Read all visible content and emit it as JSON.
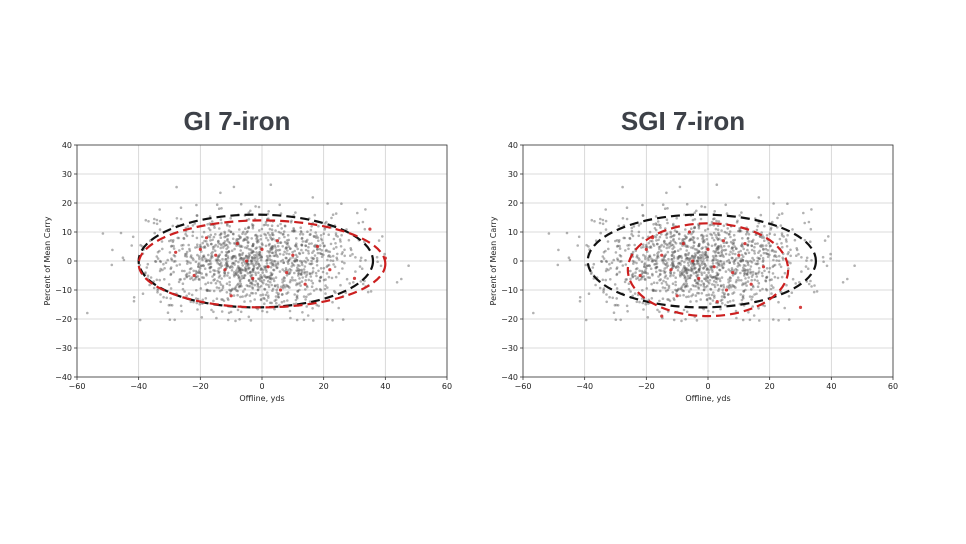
{
  "chart_data": [
    {
      "type": "scatter",
      "title": "GI 7-iron",
      "xlabel": "Offline, yds",
      "ylabel": "Percent of Mean Carry",
      "xlim": [
        -60,
        60
      ],
      "ylim": [
        -40,
        40
      ],
      "xticks": [
        -60,
        -40,
        -20,
        0,
        20,
        40,
        60
      ],
      "yticks": [
        -40,
        -30,
        -20,
        -10,
        0,
        10,
        20,
        30,
        40
      ],
      "xtick_labels": [
        "−60",
        "−40",
        "−20",
        "0",
        "20",
        "40",
        "60"
      ],
      "ytick_labels": [
        "−40",
        "−30",
        "−20",
        "−10",
        "0",
        "10",
        "20",
        "30",
        "40"
      ],
      "grid": true,
      "colors": {
        "points": "#555555",
        "highlight": "#cc1f1f",
        "ellipse_black": "#111111",
        "ellipse_red": "#cc1f1f"
      },
      "ellipses": [
        {
          "name": "black",
          "center": [
            -2,
            0
          ],
          "radius_x": 38,
          "radius_y": 16
        },
        {
          "name": "red",
          "center": [
            0,
            -1
          ],
          "radius_x": 40,
          "radius_y": 15
        }
      ],
      "highlight_points": [
        [
          -20,
          4
        ],
        [
          -15,
          2
        ],
        [
          -12,
          -3
        ],
        [
          -8,
          6
        ],
        [
          -5,
          0
        ],
        [
          -3,
          -6
        ],
        [
          0,
          4
        ],
        [
          2,
          -2
        ],
        [
          5,
          7
        ],
        [
          8,
          -4
        ],
        [
          10,
          2
        ],
        [
          14,
          -8
        ],
        [
          -22,
          -5
        ],
        [
          -28,
          3
        ],
        [
          18,
          5
        ],
        [
          22,
          -3
        ],
        [
          35,
          11
        ],
        [
          40,
          1
        ],
        [
          -10,
          -12
        ],
        [
          6,
          -10
        ],
        [
          -18,
          8
        ],
        [
          30,
          -6
        ]
      ]
    },
    {
      "type": "scatter",
      "title": "SGI 7-iron",
      "xlabel": "Offline, yds",
      "ylabel": "Percent of Mean Carry",
      "xlim": [
        -60,
        60
      ],
      "ylim": [
        -40,
        40
      ],
      "xticks": [
        -60,
        -40,
        -20,
        0,
        20,
        40,
        60
      ],
      "yticks": [
        -40,
        -30,
        -20,
        -10,
        0,
        10,
        20,
        30,
        40
      ],
      "xtick_labels": [
        "−60",
        "−40",
        "−20",
        "0",
        "20",
        "40",
        "60"
      ],
      "ytick_labels": [
        "−40",
        "−30",
        "−20",
        "−10",
        "0",
        "10",
        "20",
        "30",
        "40"
      ],
      "grid": true,
      "colors": {
        "points": "#555555",
        "highlight": "#cc1f1f",
        "ellipse_black": "#111111",
        "ellipse_red": "#cc1f1f"
      },
      "ellipses": [
        {
          "name": "black",
          "center": [
            -2,
            0
          ],
          "radius_x": 37,
          "radius_y": 16
        },
        {
          "name": "red",
          "center": [
            0,
            -3
          ],
          "radius_x": 26,
          "radius_y": 16
        }
      ],
      "highlight_points": [
        [
          -20,
          4
        ],
        [
          -15,
          2
        ],
        [
          -12,
          -3
        ],
        [
          -8,
          6
        ],
        [
          -5,
          0
        ],
        [
          -3,
          -6
        ],
        [
          0,
          4
        ],
        [
          2,
          -2
        ],
        [
          5,
          7
        ],
        [
          8,
          -4
        ],
        [
          10,
          2
        ],
        [
          14,
          -8
        ],
        [
          -22,
          -5
        ],
        [
          -10,
          -12
        ],
        [
          6,
          -10
        ],
        [
          -18,
          8
        ],
        [
          18,
          -2
        ],
        [
          -6,
          10
        ],
        [
          3,
          -14
        ],
        [
          -15,
          -19
        ],
        [
          30,
          -16
        ],
        [
          12,
          6
        ]
      ]
    }
  ]
}
